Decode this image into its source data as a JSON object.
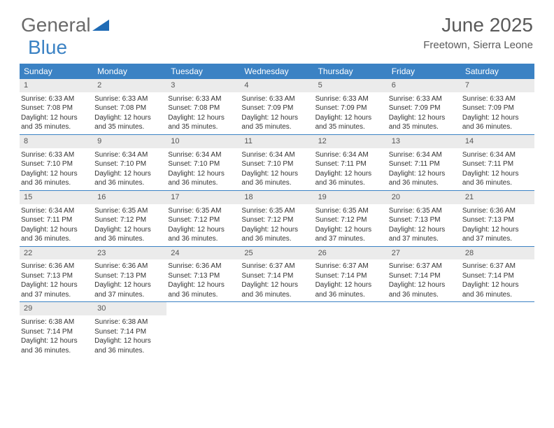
{
  "logo": {
    "word1": "General",
    "word2": "Blue"
  },
  "title": "June 2025",
  "location": "Freetown, Sierra Leone",
  "header_bg": "#3b82c4",
  "daynum_bg": "#ebebeb",
  "border_color": "#3b82c4",
  "weekdays": [
    "Sunday",
    "Monday",
    "Tuesday",
    "Wednesday",
    "Thursday",
    "Friday",
    "Saturday"
  ],
  "weeks": [
    [
      {
        "n": "1",
        "rise": "Sunrise: 6:33 AM",
        "set": "Sunset: 7:08 PM",
        "d1": "Daylight: 12 hours",
        "d2": "and 35 minutes."
      },
      {
        "n": "2",
        "rise": "Sunrise: 6:33 AM",
        "set": "Sunset: 7:08 PM",
        "d1": "Daylight: 12 hours",
        "d2": "and 35 minutes."
      },
      {
        "n": "3",
        "rise": "Sunrise: 6:33 AM",
        "set": "Sunset: 7:08 PM",
        "d1": "Daylight: 12 hours",
        "d2": "and 35 minutes."
      },
      {
        "n": "4",
        "rise": "Sunrise: 6:33 AM",
        "set": "Sunset: 7:09 PM",
        "d1": "Daylight: 12 hours",
        "d2": "and 35 minutes."
      },
      {
        "n": "5",
        "rise": "Sunrise: 6:33 AM",
        "set": "Sunset: 7:09 PM",
        "d1": "Daylight: 12 hours",
        "d2": "and 35 minutes."
      },
      {
        "n": "6",
        "rise": "Sunrise: 6:33 AM",
        "set": "Sunset: 7:09 PM",
        "d1": "Daylight: 12 hours",
        "d2": "and 35 minutes."
      },
      {
        "n": "7",
        "rise": "Sunrise: 6:33 AM",
        "set": "Sunset: 7:09 PM",
        "d1": "Daylight: 12 hours",
        "d2": "and 36 minutes."
      }
    ],
    [
      {
        "n": "8",
        "rise": "Sunrise: 6:33 AM",
        "set": "Sunset: 7:10 PM",
        "d1": "Daylight: 12 hours",
        "d2": "and 36 minutes."
      },
      {
        "n": "9",
        "rise": "Sunrise: 6:34 AM",
        "set": "Sunset: 7:10 PM",
        "d1": "Daylight: 12 hours",
        "d2": "and 36 minutes."
      },
      {
        "n": "10",
        "rise": "Sunrise: 6:34 AM",
        "set": "Sunset: 7:10 PM",
        "d1": "Daylight: 12 hours",
        "d2": "and 36 minutes."
      },
      {
        "n": "11",
        "rise": "Sunrise: 6:34 AM",
        "set": "Sunset: 7:10 PM",
        "d1": "Daylight: 12 hours",
        "d2": "and 36 minutes."
      },
      {
        "n": "12",
        "rise": "Sunrise: 6:34 AM",
        "set": "Sunset: 7:11 PM",
        "d1": "Daylight: 12 hours",
        "d2": "and 36 minutes."
      },
      {
        "n": "13",
        "rise": "Sunrise: 6:34 AM",
        "set": "Sunset: 7:11 PM",
        "d1": "Daylight: 12 hours",
        "d2": "and 36 minutes."
      },
      {
        "n": "14",
        "rise": "Sunrise: 6:34 AM",
        "set": "Sunset: 7:11 PM",
        "d1": "Daylight: 12 hours",
        "d2": "and 36 minutes."
      }
    ],
    [
      {
        "n": "15",
        "rise": "Sunrise: 6:34 AM",
        "set": "Sunset: 7:11 PM",
        "d1": "Daylight: 12 hours",
        "d2": "and 36 minutes."
      },
      {
        "n": "16",
        "rise": "Sunrise: 6:35 AM",
        "set": "Sunset: 7:12 PM",
        "d1": "Daylight: 12 hours",
        "d2": "and 36 minutes."
      },
      {
        "n": "17",
        "rise": "Sunrise: 6:35 AM",
        "set": "Sunset: 7:12 PM",
        "d1": "Daylight: 12 hours",
        "d2": "and 36 minutes."
      },
      {
        "n": "18",
        "rise": "Sunrise: 6:35 AM",
        "set": "Sunset: 7:12 PM",
        "d1": "Daylight: 12 hours",
        "d2": "and 36 minutes."
      },
      {
        "n": "19",
        "rise": "Sunrise: 6:35 AM",
        "set": "Sunset: 7:12 PM",
        "d1": "Daylight: 12 hours",
        "d2": "and 37 minutes."
      },
      {
        "n": "20",
        "rise": "Sunrise: 6:35 AM",
        "set": "Sunset: 7:13 PM",
        "d1": "Daylight: 12 hours",
        "d2": "and 37 minutes."
      },
      {
        "n": "21",
        "rise": "Sunrise: 6:36 AM",
        "set": "Sunset: 7:13 PM",
        "d1": "Daylight: 12 hours",
        "d2": "and 37 minutes."
      }
    ],
    [
      {
        "n": "22",
        "rise": "Sunrise: 6:36 AM",
        "set": "Sunset: 7:13 PM",
        "d1": "Daylight: 12 hours",
        "d2": "and 37 minutes."
      },
      {
        "n": "23",
        "rise": "Sunrise: 6:36 AM",
        "set": "Sunset: 7:13 PM",
        "d1": "Daylight: 12 hours",
        "d2": "and 37 minutes."
      },
      {
        "n": "24",
        "rise": "Sunrise: 6:36 AM",
        "set": "Sunset: 7:13 PM",
        "d1": "Daylight: 12 hours",
        "d2": "and 36 minutes."
      },
      {
        "n": "25",
        "rise": "Sunrise: 6:37 AM",
        "set": "Sunset: 7:14 PM",
        "d1": "Daylight: 12 hours",
        "d2": "and 36 minutes."
      },
      {
        "n": "26",
        "rise": "Sunrise: 6:37 AM",
        "set": "Sunset: 7:14 PM",
        "d1": "Daylight: 12 hours",
        "d2": "and 36 minutes."
      },
      {
        "n": "27",
        "rise": "Sunrise: 6:37 AM",
        "set": "Sunset: 7:14 PM",
        "d1": "Daylight: 12 hours",
        "d2": "and 36 minutes."
      },
      {
        "n": "28",
        "rise": "Sunrise: 6:37 AM",
        "set": "Sunset: 7:14 PM",
        "d1": "Daylight: 12 hours",
        "d2": "and 36 minutes."
      }
    ],
    [
      {
        "n": "29",
        "rise": "Sunrise: 6:38 AM",
        "set": "Sunset: 7:14 PM",
        "d1": "Daylight: 12 hours",
        "d2": "and 36 minutes."
      },
      {
        "n": "30",
        "rise": "Sunrise: 6:38 AM",
        "set": "Sunset: 7:14 PM",
        "d1": "Daylight: 12 hours",
        "d2": "and 36 minutes."
      },
      null,
      null,
      null,
      null,
      null
    ]
  ]
}
